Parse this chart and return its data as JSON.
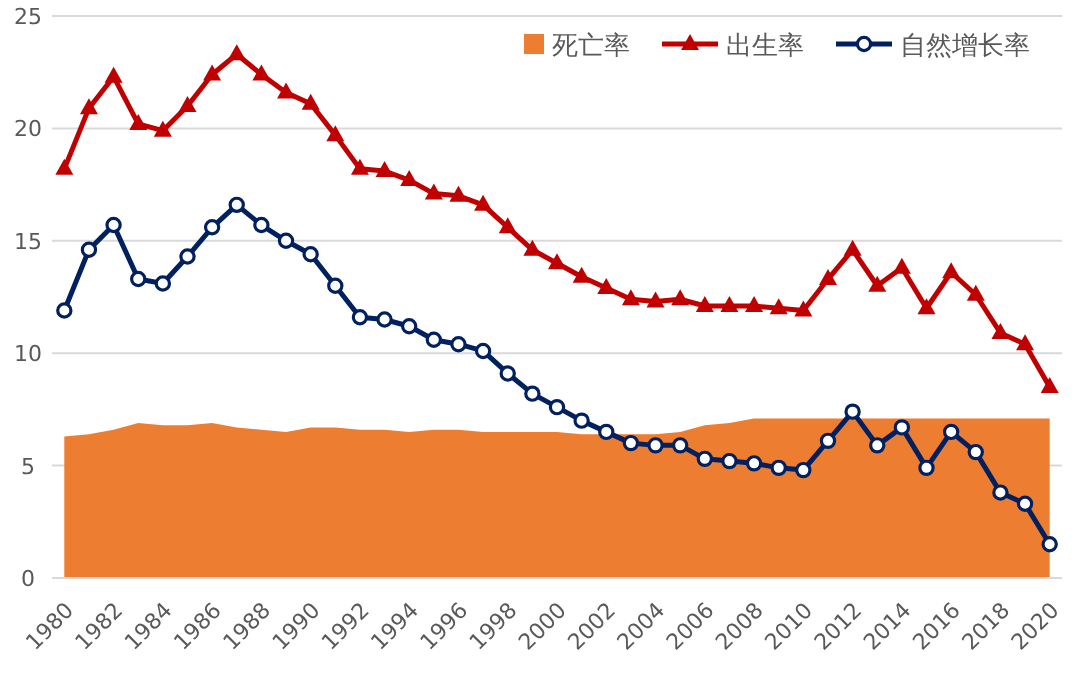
{
  "chart_data": {
    "type": "line",
    "categories": [
      "1980",
      null,
      "1982",
      null,
      "1984",
      null,
      "1986",
      null,
      "1988",
      null,
      "1990",
      null,
      "1992",
      null,
      "1994",
      null,
      "1996",
      null,
      "1998",
      null,
      "2000",
      null,
      "2002",
      null,
      "2004",
      null,
      "2006",
      null,
      "2008",
      null,
      "2010",
      null,
      "2012",
      null,
      "2014",
      null,
      "2016",
      null,
      "2018",
      null,
      "2020"
    ],
    "series": [
      {
        "name": "死亡率",
        "type": "area",
        "color": "#ed7d31",
        "values": [
          6.3,
          6.4,
          6.6,
          6.9,
          6.8,
          6.8,
          6.9,
          6.7,
          6.6,
          6.5,
          6.7,
          6.7,
          6.6,
          6.6,
          6.5,
          6.6,
          6.6,
          6.5,
          6.5,
          6.5,
          6.5,
          6.4,
          6.4,
          6.4,
          6.4,
          6.5,
          6.8,
          6.9,
          7.1,
          7.1,
          7.1,
          7.1,
          7.1,
          7.1,
          7.1,
          7.1,
          7.1,
          7.1,
          7.1,
          7.1,
          7.1
        ]
      },
      {
        "name": "出生率",
        "marker": "triangle",
        "color": "#c00000",
        "values": [
          18.2,
          20.9,
          22.3,
          20.2,
          19.9,
          21.0,
          22.4,
          23.3,
          22.4,
          21.6,
          21.1,
          19.7,
          18.2,
          18.1,
          17.7,
          17.1,
          17.0,
          16.6,
          15.6,
          14.6,
          14.0,
          13.4,
          12.9,
          12.4,
          12.3,
          12.4,
          12.1,
          12.1,
          12.1,
          12.0,
          11.9,
          13.3,
          14.6,
          13.0,
          13.8,
          12.0,
          13.6,
          12.6,
          10.9,
          10.4,
          8.5
        ]
      },
      {
        "name": "自然增长率",
        "marker": "circle",
        "color": "#002060",
        "values": [
          11.9,
          14.6,
          15.7,
          13.3,
          13.1,
          14.3,
          15.6,
          16.6,
          15.7,
          15.0,
          14.4,
          13.0,
          11.6,
          11.5,
          11.2,
          10.6,
          10.4,
          10.1,
          9.1,
          8.2,
          7.6,
          7.0,
          6.5,
          6.0,
          5.9,
          5.9,
          5.3,
          5.2,
          5.1,
          4.9,
          4.8,
          6.1,
          7.4,
          5.9,
          6.7,
          4.9,
          6.5,
          5.6,
          3.8,
          3.3,
          1.5
        ]
      }
    ],
    "ylim": [
      0,
      25
    ],
    "yticks": [
      0,
      5,
      10,
      15,
      20,
      25
    ],
    "grid": "y",
    "legend": "top right"
  }
}
